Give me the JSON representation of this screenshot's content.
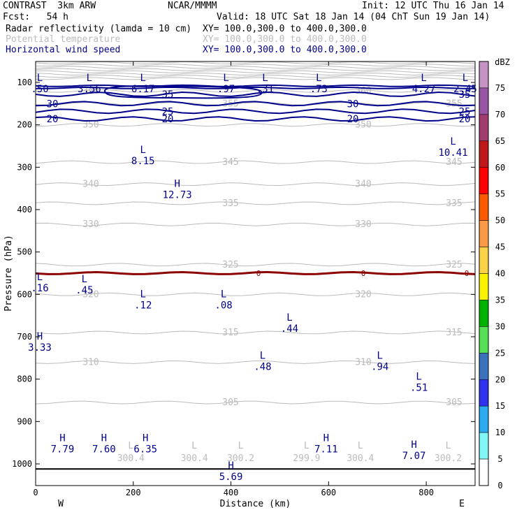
{
  "header": {
    "title": "CONTRAST  3km ARW",
    "source": "NCAR/MMMM",
    "init": "Init: 12 UTC Thu 16 Jan 14",
    "fcst": "Fcst:   54 h",
    "valid": "Valid: 18 UTC Sat 18 Jan 14 (04 ChT Sun 19 Jan 14)",
    "fields": [
      {
        "name": "Radar reflectivity (lamda = 10 cm)",
        "xy": "XY= 100.0,300.0 to 400.0,300.0",
        "color": "#000000"
      },
      {
        "name": "Potential temperature",
        "xy": "XY= 100.0,300.0 to 400.0,300.0",
        "color": "#bbbbbb"
      },
      {
        "name": "Horizontal wind speed",
        "xy": "XY= 100.0,300.0 to 400.0,300.0",
        "color": "#00008b"
      }
    ]
  },
  "chart_data": {
    "type": "contour-cross-section",
    "xlabel": "Distance (km)",
    "ylabel": "Pressure (hPa)",
    "xlim": [
      0,
      900
    ],
    "ylim": [
      1050,
      60
    ],
    "xticks": [
      "0",
      "200",
      "400",
      "600",
      "800"
    ],
    "yticks": [
      "100",
      "200",
      "300",
      "400",
      "500",
      "600",
      "700",
      "800",
      "900",
      "1000"
    ],
    "west_label": "W",
    "east_label": "E",
    "theta_contours": [
      {
        "label": "360",
        "p": 120
      },
      {
        "label": "355",
        "p": 150
      },
      {
        "label": "350",
        "p": 200
      },
      {
        "label": "345",
        "p": 288
      },
      {
        "label": "340",
        "p": 340
      },
      {
        "label": "335",
        "p": 385
      },
      {
        "label": "330",
        "p": 435
      },
      {
        "label": "325",
        "p": 530
      },
      {
        "label": "320",
        "p": 600
      },
      {
        "label": "315",
        "p": 690
      },
      {
        "label": "310",
        "p": 760
      },
      {
        "label": "305",
        "p": 855
      }
    ],
    "wind_contours": [
      {
        "label": "35",
        "p": 128
      },
      {
        "label": "30",
        "p": 150
      },
      {
        "label": "25",
        "p": 168
      },
      {
        "label": "20",
        "p": 186
      }
    ],
    "reflectivity_contour_label": "0",
    "extrema": [
      {
        "t": "L",
        "v": ".50",
        "x": 5,
        "p": 100
      },
      {
        "t": "L",
        "v": "3.56",
        "x": 110,
        "p": 100
      },
      {
        "t": "L",
        "v": "6.17",
        "x": 220,
        "p": 100
      },
      {
        "t": "L",
        "v": ".97",
        "x": 390,
        "p": 100
      },
      {
        "t": "L",
        "v": ".31",
        "x": 470,
        "p": 100
      },
      {
        "t": "L",
        "v": ".73",
        "x": 580,
        "p": 100
      },
      {
        "t": "L",
        "v": "4.27",
        "x": 795,
        "p": 100
      },
      {
        "t": "L",
        "v": "2.45",
        "x": 880,
        "p": 100
      },
      {
        "t": "L",
        "v": "8.15",
        "x": 220,
        "p": 270
      },
      {
        "t": "H",
        "v": "12.73",
        "x": 290,
        "p": 350
      },
      {
        "t": "L",
        "v": "10.41",
        "x": 855,
        "p": 250
      },
      {
        "t": "L",
        "v": ".16",
        "x": 5,
        "p": 570
      },
      {
        "t": "L",
        "v": ".45",
        "x": 100,
        "p": 575
      },
      {
        "t": "L",
        "v": ".12",
        "x": 220,
        "p": 610
      },
      {
        "t": "L",
        "v": ".08",
        "x": 385,
        "p": 610
      },
      {
        "t": "L",
        "v": ".44",
        "x": 520,
        "p": 665
      },
      {
        "t": "H",
        "v": "3.33",
        "x": 5,
        "p": 710
      },
      {
        "t": "L",
        "v": ".48",
        "x": 465,
        "p": 755
      },
      {
        "t": "L",
        "v": ".94",
        "x": 705,
        "p": 755
      },
      {
        "t": "L",
        "v": ".51",
        "x": 785,
        "p": 805
      },
      {
        "t": "H",
        "v": "7.79",
        "x": 55,
        "p": 950
      },
      {
        "t": "H",
        "v": "7.60",
        "x": 140,
        "p": 950
      },
      {
        "t": "H",
        "v": "6.35",
        "x": 225,
        "p": 950
      },
      {
        "t": "H",
        "v": "7.11",
        "x": 595,
        "p": 950
      },
      {
        "t": "H",
        "v": "7.07",
        "x": 775,
        "p": 965
      },
      {
        "t": "H",
        "v": "5.69",
        "x": 400,
        "p": 1015
      }
    ],
    "surface_extrema": [
      {
        "t": "L",
        "v": "300.4",
        "x": 195
      },
      {
        "t": "L",
        "v": "300.4",
        "x": 325
      },
      {
        "t": "L",
        "v": "300.2",
        "x": 420
      },
      {
        "t": "L",
        "v": "299.9",
        "x": 555
      },
      {
        "t": "L",
        "v": "300.4",
        "x": 665
      },
      {
        "t": "L",
        "v": "300.2",
        "x": 845
      }
    ],
    "colorbar": {
      "units": "dBZ",
      "levels": [
        "75",
        "70",
        "65",
        "60",
        "55",
        "50",
        "45",
        "40",
        "35",
        "30",
        "25",
        "20",
        "15",
        "10",
        "5",
        "0"
      ],
      "colors": [
        "#c594c5",
        "#9a54a6",
        "#a03c6e",
        "#c01818",
        "#ff0000",
        "#ff5a00",
        "#fa9a46",
        "#fcd348",
        "#f9f200",
        "#00b200",
        "#55e055",
        "#3a72bc",
        "#3030ef",
        "#2da9f0",
        "#80f8f8",
        "#ffffff"
      ]
    }
  }
}
